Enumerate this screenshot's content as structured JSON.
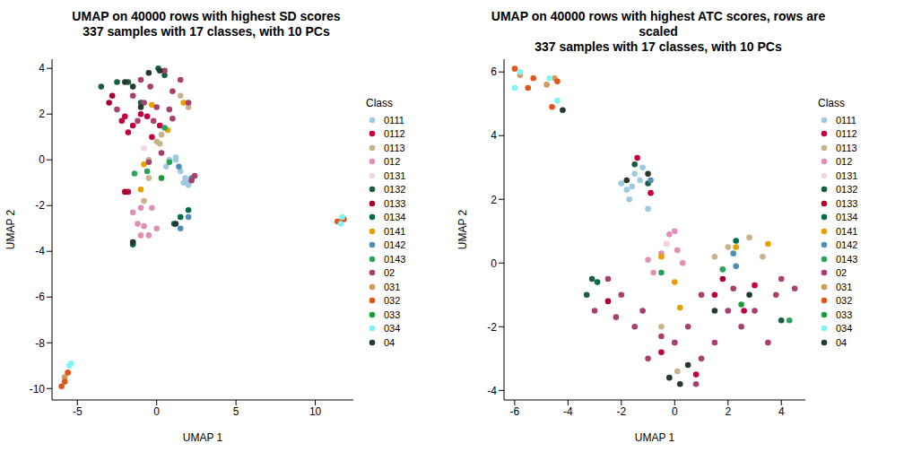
{
  "chart_data": [
    {
      "type": "scatter",
      "title": "UMAP on 40000 rows with highest SD scores",
      "subtitle": "337 samples with 17 classes, with 10 PCs",
      "x_label": "UMAP 1",
      "y_label": "UMAP 2",
      "legend_title": "Class",
      "xlim": [
        -6.6,
        12.4
      ],
      "xticks": [
        -5,
        0,
        5,
        10
      ],
      "ylim": [
        -10.5,
        4.4
      ],
      "yticks": [
        -10,
        -8,
        -6,
        -4,
        -2,
        0,
        2,
        4
      ],
      "series": [
        {
          "name": "0111",
          "color": "#9ecae1",
          "x": [
            1.2,
            2,
            1.5,
            1.7,
            2,
            0.8,
            1.2,
            0.6,
            1.8
          ],
          "y": [
            0,
            -1,
            -0.5,
            -1,
            -1.1,
            0,
            0.1,
            -0.3,
            -0.8
          ]
        },
        {
          "name": "0112",
          "color": "#c2003f",
          "x": [
            -2,
            -1.5,
            -1,
            -0.6,
            -2.2,
            -1.8,
            -1.8,
            0.2,
            -0.3
          ],
          "y": [
            1.9,
            1.5,
            2,
            1.9,
            1.7,
            1.2,
            -1.4,
            1.5,
            1
          ]
        },
        {
          "name": "0113",
          "color": "#c9b38a",
          "x": [
            -0.5,
            0,
            0.3,
            -0.8,
            -0.5,
            1.5,
            2,
            0.2
          ],
          "y": [
            0,
            0.8,
            1.1,
            -1.8,
            -0.8,
            2.8,
            2.3,
            0.7
          ]
        },
        {
          "name": "012",
          "color": "#e08fb6",
          "x": [
            -1.5,
            -1.2,
            -1,
            -0.5,
            -1.5,
            -1,
            -0.3,
            -0.8,
            0
          ],
          "y": [
            -2.3,
            -2.8,
            -3.3,
            -3.3,
            -3.6,
            -2.1,
            -2.1,
            -2.9,
            -3
          ]
        },
        {
          "name": "0131",
          "color": "#f3d6e4",
          "x": [
            -0.8
          ],
          "y": [
            0.5
          ]
        },
        {
          "name": "0132",
          "color": "#1b5e3b",
          "x": [
            -3.5,
            -2.5,
            -1.8,
            -1,
            0.1,
            0.5
          ],
          "y": [
            3.2,
            3.4,
            3.4,
            2.5,
            4,
            3.7
          ]
        },
        {
          "name": "0133",
          "color": "#a8002f",
          "x": [
            -2.8,
            -3,
            -2
          ],
          "y": [
            2.8,
            2.5,
            -1.4
          ]
        },
        {
          "name": "0134",
          "color": "#006d4a",
          "x": [
            1.1,
            1.5,
            2,
            -1.5
          ],
          "y": [
            -2.8,
            -2.5,
            -2.2,
            -3.7
          ]
        },
        {
          "name": "0141",
          "color": "#e6a000",
          "x": [
            -0.8,
            -1,
            1.7,
            -0.3,
            0.7
          ],
          "y": [
            -0.2,
            -1.3,
            2.5,
            2.4,
            1.3
          ]
        },
        {
          "name": "0142",
          "color": "#4f8fb7",
          "x": [
            1.5,
            2,
            2.2,
            1.4
          ],
          "y": [
            -3,
            -2.5,
            -0.8,
            -0.3
          ]
        },
        {
          "name": "0143",
          "color": "#2ca25f",
          "x": [
            -0.6,
            -1.4,
            0.5,
            0.8
          ],
          "y": [
            -0.5,
            -0.6,
            1.4,
            -0.1
          ]
        },
        {
          "name": "02",
          "color": "#a83f6e",
          "x": [
            -1,
            -0.4,
            0.5,
            1,
            1.5,
            2,
            0,
            -0.8,
            -2.5,
            -1.2,
            0.8,
            2.4,
            2.2,
            0.3,
            -0.2,
            1,
            -1.5,
            -0.5
          ],
          "y": [
            3.5,
            3.2,
            3.9,
            3,
            3.5,
            2.5,
            2.3,
            2.5,
            2.2,
            1.7,
            2.2,
            -0.7,
            -0.9,
            0.3,
            1.7,
            1.8,
            2.8,
            -0.1
          ]
        },
        {
          "name": "031",
          "color": "#d29a5a",
          "x": [
            -5.8,
            11.6
          ],
          "y": [
            -9.5,
            -2.7
          ]
        },
        {
          "name": "032",
          "color": "#e0561a",
          "x": [
            -6,
            -5.8,
            -5.6,
            11.4,
            11.8
          ],
          "y": [
            -9.9,
            -9.7,
            -9.3,
            -2.7,
            -2.6
          ]
        },
        {
          "name": "033",
          "color": "#1a9e3a",
          "x": [
            0.3
          ],
          "y": [
            -0.8
          ]
        },
        {
          "name": "034",
          "color": "#7ff5f5",
          "x": [
            -5.5,
            -5.4,
            11.6,
            11.7
          ],
          "y": [
            -9,
            -8.9,
            -2.8,
            -2.5
          ]
        },
        {
          "name": "04",
          "color": "#253a2e",
          "x": [
            -2,
            -1.5,
            -0.5,
            0.2,
            -1,
            1.2,
            -1.5
          ],
          "y": [
            3.4,
            3.2,
            3.8,
            3.9,
            2.3,
            -2.8,
            -3.6
          ]
        }
      ]
    },
    {
      "type": "scatter",
      "title": "UMAP on 40000 rows with highest ATC scores, rows are scaled",
      "subtitle": "337 samples with 17 classes, with 10 PCs",
      "x_label": "UMAP 1",
      "y_label": "UMAP 2",
      "legend_title": "Class",
      "xlim": [
        -6.4,
        4.9
      ],
      "xticks": [
        -6,
        -4,
        -2,
        0,
        2,
        4
      ],
      "ylim": [
        -4.3,
        6.4
      ],
      "yticks": [
        -4,
        -2,
        0,
        2,
        4,
        6
      ],
      "series": [
        {
          "name": "0111",
          "color": "#9ecae1",
          "x": [
            -2,
            -1.8,
            -1.5,
            -1.3,
            -1.7,
            -1.2,
            -1.6,
            -1
          ],
          "y": [
            2.5,
            2.3,
            2.8,
            2.6,
            2,
            3,
            2.4,
            1.7
          ]
        },
        {
          "name": "0112",
          "color": "#c2003f",
          "x": [
            -1.4,
            -0.9,
            1.5,
            2.6,
            0.8,
            -0.5,
            3
          ],
          "y": [
            3.3,
            2.2,
            -1,
            -1.5,
            -3.5,
            -2.8,
            -0.7
          ]
        },
        {
          "name": "0113",
          "color": "#c9b38a",
          "x": [
            -0.5,
            0.1,
            2,
            2.8,
            1.5,
            3.3,
            0
          ],
          "y": [
            -2,
            -3.4,
            0.5,
            0.8,
            0.2,
            0.2,
            -2.5
          ]
        },
        {
          "name": "012",
          "color": "#e08fb6",
          "x": [
            -0.3,
            0,
            -0.5,
            0.1,
            -0.8,
            0.3,
            -1,
            -0.2
          ],
          "y": [
            0.6,
            1,
            0.3,
            0.4,
            -0.3,
            0,
            0.1,
            0.9
          ]
        },
        {
          "name": "0131",
          "color": "#f3d6e4",
          "x": [
            -0.3
          ],
          "y": [
            0.6
          ]
        },
        {
          "name": "0132",
          "color": "#1b5e3b",
          "x": [
            -1,
            -1.5,
            -3.1,
            4,
            -3.3
          ],
          "y": [
            2.5,
            3.1,
            -0.5,
            -1.8,
            -1
          ]
        },
        {
          "name": "0133",
          "color": "#a8002f",
          "x": [
            -2.5,
            1.8
          ],
          "y": [
            -1.2,
            -0.5
          ]
        },
        {
          "name": "0134",
          "color": "#006d4a",
          "x": [
            -2.9,
            2.3
          ],
          "y": [
            -0.6,
            0.7
          ]
        },
        {
          "name": "0141",
          "color": "#e6a000",
          "x": [
            -0.5,
            0.2,
            2.3,
            3.5,
            0
          ],
          "y": [
            0.2,
            -1.4,
            0.5,
            0.6,
            -0.6
          ]
        },
        {
          "name": "0142",
          "color": "#4f8fb7",
          "x": [
            -0.9,
            2.2,
            2.3
          ],
          "y": [
            2.6,
            0.3,
            -0.1
          ]
        },
        {
          "name": "0143",
          "color": "#2ca25f",
          "x": [
            -0.5,
            4.3,
            1.8
          ],
          "y": [
            -0.3,
            -1.8,
            -0.2
          ]
        },
        {
          "name": "02",
          "color": "#a83f6e",
          "x": [
            -3,
            -2.5,
            -2,
            -1.5,
            -1,
            -0.5,
            0,
            0.5,
            1,
            1.5,
            2,
            2.5,
            3,
            3.5,
            4,
            4.5,
            3.8,
            1,
            2.2,
            -2.2,
            -1.2,
            0.8
          ],
          "y": [
            -1.5,
            -0.5,
            -1,
            -2,
            -3,
            -2.3,
            -2.5,
            -2,
            -3,
            -2.5,
            -1.5,
            -2,
            -1.5,
            -2.5,
            -0.5,
            -0.8,
            -1,
            -1,
            -0.8,
            -1.7,
            -1.5,
            -3.8
          ]
        },
        {
          "name": "031",
          "color": "#d29a5a",
          "x": [
            -5.8,
            -4.5,
            -4.8
          ],
          "y": [
            5.9,
            5.8,
            5.6
          ]
        },
        {
          "name": "032",
          "color": "#e0561a",
          "x": [
            -6,
            -5.5,
            -4.6,
            -4.4,
            -5.3
          ],
          "y": [
            6.1,
            5.5,
            4.9,
            5.7,
            5.8
          ]
        },
        {
          "name": "033",
          "color": "#1a9e3a",
          "x": [
            2.5
          ],
          "y": [
            -1.3
          ]
        },
        {
          "name": "034",
          "color": "#7ff5f5",
          "x": [
            -6,
            -5.8,
            -4.4,
            -4.7
          ],
          "y": [
            5.5,
            6,
            5.1,
            5.8
          ]
        },
        {
          "name": "04",
          "color": "#253a2e",
          "x": [
            -1.8,
            -1,
            -4.2,
            0.5,
            0.2,
            2.8,
            -0.2,
            1.5
          ],
          "y": [
            2.6,
            2.8,
            4.8,
            -3.2,
            -3.8,
            -1,
            -3.6,
            -1.5
          ]
        }
      ]
    }
  ]
}
